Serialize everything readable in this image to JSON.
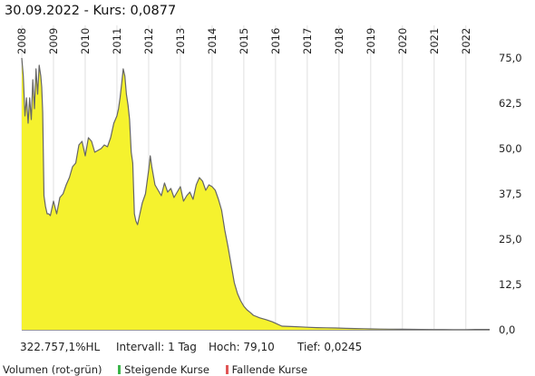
{
  "header": {
    "date": "30.09.2022",
    "kurs_label": "- Kurs:",
    "kurs_value": "0,0877"
  },
  "footer": {
    "change": "322.757,1%HL",
    "interval": "Intervall: 1 Tag",
    "high": "Hoch:  79,10",
    "low": "Tief: 0,0245"
  },
  "volume_legend": {
    "label": "Volumen (rot-grün)",
    "rising": "Steigende Kurse",
    "falling": "Fallende Kurse",
    "rising_color": "#3cb44b",
    "falling_color": "#e05555"
  },
  "colors": {
    "area_fill": "#f5f22e",
    "line": "#666666",
    "grid": "#e0e0e0"
  },
  "chart_data": {
    "type": "area",
    "x_ticks": [
      "2008",
      "2009",
      "2010",
      "2011",
      "2012",
      "2013",
      "2014",
      "2015",
      "2016",
      "2017",
      "2018",
      "2019",
      "2020",
      "2021",
      "2022"
    ],
    "y_ticks": [
      "75,0",
      "62,5",
      "50,0",
      "37,5",
      "25,0",
      "12,5",
      "0,0"
    ],
    "ylim": [
      0,
      79.1
    ],
    "xlim": [
      2008.0,
      2022.75
    ],
    "grid": "vertical",
    "series": [
      {
        "x": [
          2008.0,
          2008.05,
          2008.1,
          2008.15,
          2008.2,
          2008.25,
          2008.3,
          2008.35,
          2008.4,
          2008.45,
          2008.5,
          2008.55,
          2008.6,
          2008.63,
          2008.66,
          2008.7,
          2008.75,
          2008.8,
          2008.85,
          2008.9,
          2009.0,
          2009.1,
          2009.2,
          2009.3,
          2009.4,
          2009.5,
          2009.6,
          2009.7,
          2009.8,
          2009.9,
          2010.0,
          2010.1,
          2010.2,
          2010.3,
          2010.4,
          2010.5,
          2010.6,
          2010.7,
          2010.8,
          2010.9,
          2011.0,
          2011.05,
          2011.1,
          2011.15,
          2011.2,
          2011.25,
          2011.3,
          2011.35,
          2011.4,
          2011.45,
          2011.5,
          2011.55,
          2011.6,
          2011.65,
          2011.7,
          2011.8,
          2011.9,
          2012.0,
          2012.05,
          2012.1,
          2012.2,
          2012.3,
          2012.4,
          2012.5,
          2012.6,
          2012.7,
          2012.8,
          2012.9,
          2013.0,
          2013.1,
          2013.2,
          2013.3,
          2013.4,
          2013.5,
          2013.6,
          2013.7,
          2013.8,
          2013.9,
          2014.0,
          2014.1,
          2014.2,
          2014.3,
          2014.4,
          2014.5,
          2014.6,
          2014.7,
          2014.8,
          2014.9,
          2015.0,
          2015.1,
          2015.2,
          2015.3,
          2015.5,
          2015.7,
          2015.9,
          2016.0,
          2016.2,
          2016.5,
          2016.8,
          2017.0,
          2017.3,
          2017.6,
          2017.9,
          2018.2,
          2018.5,
          2018.8,
          2019.0,
          2019.3,
          2019.6,
          2020.0,
          2020.3,
          2020.6,
          2021.0,
          2021.3,
          2021.6,
          2022.0,
          2022.3,
          2022.5,
          2022.75
        ],
        "values": [
          75.0,
          70.0,
          59.0,
          64.0,
          57.0,
          64.0,
          58.0,
          69.0,
          61.0,
          72.0,
          65.0,
          73.0,
          70.0,
          67.0,
          60.0,
          37.0,
          34.0,
          32.0,
          32.0,
          31.5,
          35.5,
          32.0,
          36.5,
          37.5,
          40.0,
          42.0,
          45.0,
          46.0,
          51.0,
          52.0,
          48.0,
          53.0,
          52.0,
          49.0,
          49.5,
          50.0,
          51.0,
          50.5,
          53.0,
          57.0,
          59.0,
          61.0,
          64.0,
          68.0,
          72.0,
          70.0,
          65.0,
          62.0,
          58.0,
          49.0,
          46.0,
          32.0,
          30.0,
          29.0,
          31.0,
          35.0,
          37.5,
          44.0,
          48.0,
          45.0,
          40.0,
          38.5,
          37.0,
          40.5,
          38.0,
          39.0,
          36.5,
          38.0,
          39.5,
          35.5,
          37.0,
          38.0,
          36.0,
          40.0,
          42.0,
          41.0,
          38.5,
          40.0,
          39.5,
          38.5,
          36.0,
          33.0,
          27.5,
          23.0,
          18.0,
          13.0,
          10.0,
          8.0,
          6.5,
          5.5,
          4.8,
          4.0,
          3.3,
          2.8,
          2.2,
          1.8,
          1.0,
          0.9,
          0.8,
          0.7,
          0.6,
          0.55,
          0.5,
          0.4,
          0.35,
          0.3,
          0.25,
          0.2,
          0.18,
          0.15,
          0.12,
          0.1,
          0.08,
          0.08,
          0.06,
          0.05,
          0.1,
          0.09,
          0.0877
        ]
      }
    ]
  }
}
